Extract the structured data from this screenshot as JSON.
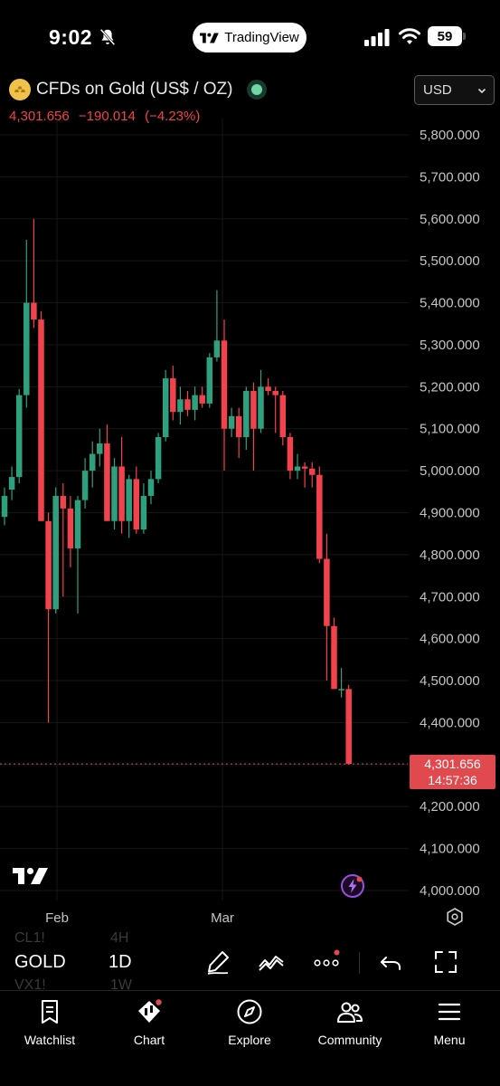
{
  "status_bar": {
    "time": "9:02",
    "app_pill_label": "TradingView",
    "battery": "59",
    "icons": [
      "bell-muted-icon",
      "cellular-signal-icon",
      "wifi-icon",
      "battery-icon"
    ]
  },
  "header": {
    "symbol_title": "CFDs on Gold (US$ / OZ)",
    "last_price": "4,301.656",
    "change": "−190.014",
    "change_percent": "(−4.23%)",
    "currency": "USD",
    "colors": {
      "down": "#f2424b",
      "up": "#2fa07e",
      "live_dot": "#6fd6a4"
    }
  },
  "chart": {
    "price_badge": {
      "price": "4,301.656",
      "countdown": "14:57:36"
    },
    "y_ticks": [
      "5,800.000",
      "5,700.000",
      "5,600.000",
      "5,500.000",
      "5,400.000",
      "5,300.000",
      "5,200.000",
      "5,100.000",
      "5,000.000",
      "4,900.000",
      "4,800.000",
      "4,700.000",
      "4,600.000",
      "4,500.000",
      "4,400.000",
      "4,300.000",
      "4,200.000",
      "4,100.000",
      "4,000.000"
    ],
    "x_ticks": [
      "Feb",
      "Mar"
    ]
  },
  "chart_data": {
    "type": "candlestick",
    "x_ticks": [
      "Feb",
      "Mar"
    ],
    "ylim": [
      3960,
      5920
    ],
    "y_tick_values": [
      5800,
      5700,
      5600,
      5500,
      5400,
      5300,
      5200,
      5100,
      5000,
      4900,
      4800,
      4700,
      4600,
      4500,
      4400,
      4300,
      4200,
      4100,
      4000
    ],
    "current_price": 4301.656,
    "candles": [
      [
        4890,
        4960,
        4870,
        4940
      ],
      [
        4955,
        5010,
        4930,
        4985
      ],
      [
        4985,
        5195,
        4970,
        5180
      ],
      [
        5180,
        5550,
        5150,
        5400
      ],
      [
        5400,
        5600,
        5340,
        5360
      ],
      [
        5360,
        5380,
        4880,
        4880
      ],
      [
        4880,
        4900,
        4400,
        4670
      ],
      [
        4670,
        4960,
        4660,
        4940
      ],
      [
        4940,
        4970,
        4700,
        4910
      ],
      [
        4910,
        4940,
        4770,
        4815
      ],
      [
        4815,
        4940,
        4660,
        4930
      ],
      [
        4930,
        5030,
        4910,
        5000
      ],
      [
        5000,
        5070,
        4960,
        5040
      ],
      [
        5040,
        5100,
        5010,
        5065
      ],
      [
        5065,
        5110,
        4880,
        4880
      ],
      [
        4880,
        5030,
        4860,
        5010
      ],
      [
        5010,
        5080,
        4850,
        4880
      ],
      [
        4880,
        4990,
        4840,
        4980
      ],
      [
        4980,
        5010,
        4850,
        4860
      ],
      [
        4860,
        4970,
        4850,
        4940
      ],
      [
        4940,
        5000,
        4920,
        4980
      ],
      [
        4980,
        5090,
        4970,
        5080
      ],
      [
        5080,
        5240,
        5070,
        5220
      ],
      [
        5220,
        5250,
        5120,
        5140
      ],
      [
        5140,
        5200,
        5110,
        5170
      ],
      [
        5170,
        5190,
        5130,
        5145
      ],
      [
        5145,
        5200,
        5120,
        5180
      ],
      [
        5180,
        5200,
        5150,
        5160
      ],
      [
        5160,
        5280,
        5150,
        5270
      ],
      [
        5270,
        5430,
        5260,
        5310
      ],
      [
        5310,
        5360,
        5000,
        5100
      ],
      [
        5100,
        5150,
        5080,
        5130
      ],
      [
        5130,
        5150,
        5030,
        5080
      ],
      [
        5080,
        5200,
        5050,
        5190
      ],
      [
        5190,
        5210,
        5000,
        5100
      ],
      [
        5100,
        5240,
        5090,
        5200
      ],
      [
        5200,
        5220,
        5180,
        5190
      ],
      [
        5190,
        5200,
        5090,
        5180
      ],
      [
        5180,
        5190,
        5060,
        5080
      ],
      [
        5080,
        5090,
        4980,
        5000
      ],
      [
        5000,
        5040,
        4980,
        5010
      ],
      [
        5010,
        5020,
        4960,
        5005
      ],
      [
        5005,
        5020,
        4960,
        4990
      ],
      [
        4990,
        5010,
        4780,
        4790
      ],
      [
        4790,
        4850,
        4500,
        4630
      ],
      [
        4630,
        4650,
        4480,
        4480
      ],
      [
        4480,
        4530,
        4460,
        4480
      ],
      [
        4480,
        4490,
        4300,
        4301.656
      ]
    ]
  },
  "toolbar": {
    "symbol": "GOLD",
    "interval": "1D",
    "ghost_symbols": [
      "CL1!",
      "VX1!"
    ],
    "ghost_intervals": [
      "4H",
      "1W"
    ],
    "icons": [
      "drawing-pen-icon",
      "indicator-wave-icon",
      "more-dots-icon",
      "undo-icon",
      "fullscreen-icon"
    ]
  },
  "bottom_nav": {
    "items": [
      {
        "label": "Watchlist",
        "icon": "watchlist-icon"
      },
      {
        "label": "Chart",
        "icon": "chart-icon"
      },
      {
        "label": "Explore",
        "icon": "compass-icon"
      },
      {
        "label": "Community",
        "icon": "community-icon"
      },
      {
        "label": "Menu",
        "icon": "menu-icon"
      }
    ]
  }
}
